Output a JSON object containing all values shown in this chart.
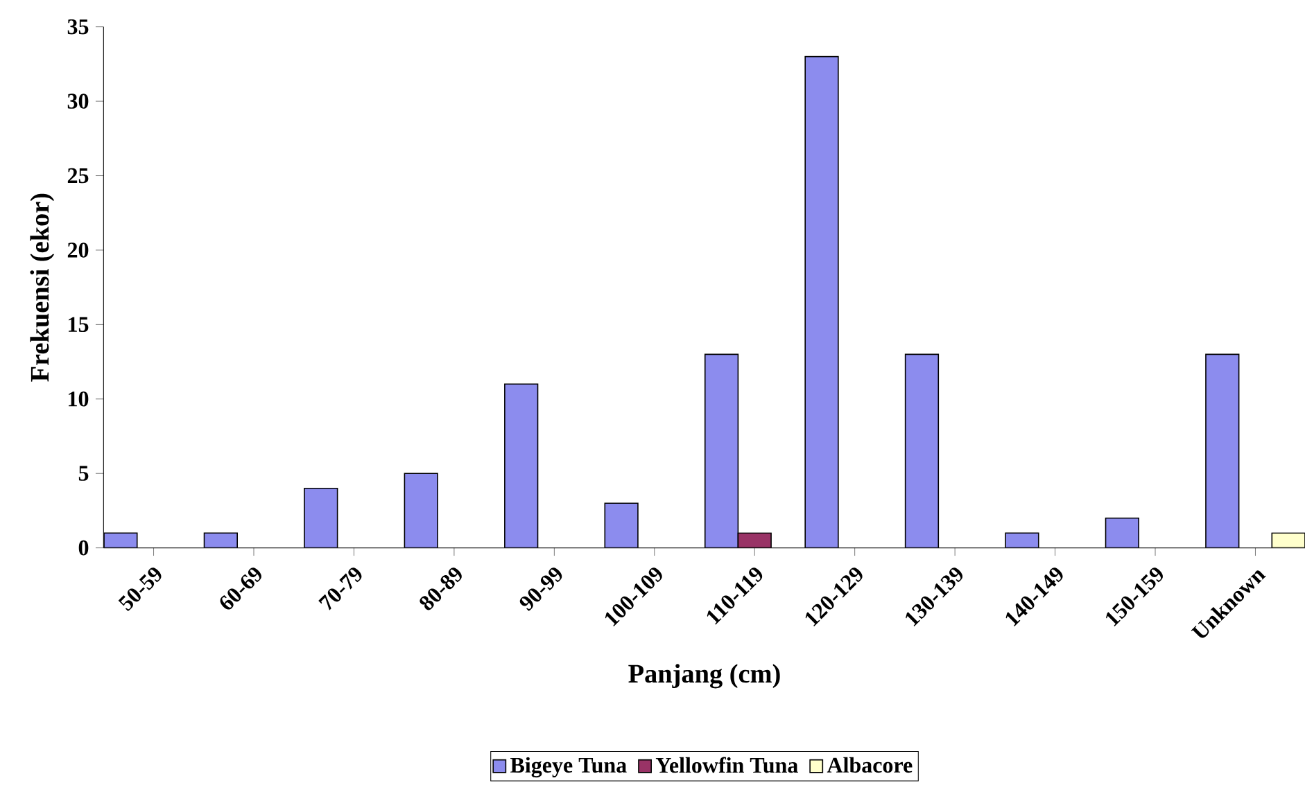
{
  "chart_data": {
    "type": "bar",
    "xlabel": "Panjang (cm)",
    "ylabel": "Frekuensi (ekor)",
    "categories": [
      "50-59",
      "60-69",
      "70-79",
      "80-89",
      "90-99",
      "100-109",
      "110-119",
      "120-129",
      "130-139",
      "140-149",
      "150-159",
      "Unknown"
    ],
    "series": [
      {
        "name": "Bigeye Tuna",
        "color": "#8c8cee",
        "values": [
          1,
          1,
          4,
          5,
          11,
          3,
          13,
          33,
          13,
          1,
          2,
          13
        ]
      },
      {
        "name": "Yellowfin Tuna",
        "color": "#993366",
        "values": [
          null,
          null,
          null,
          null,
          null,
          null,
          1,
          null,
          null,
          null,
          null,
          null
        ]
      },
      {
        "name": "Albacore",
        "color": "#ffffcc",
        "values": [
          null,
          null,
          null,
          null,
          null,
          null,
          null,
          null,
          null,
          null,
          null,
          1
        ]
      }
    ],
    "ylim": [
      0,
      35
    ],
    "yticks": [
      0,
      5,
      10,
      15,
      20,
      25,
      30,
      35
    ],
    "grid": false,
    "legend": "bottom"
  }
}
